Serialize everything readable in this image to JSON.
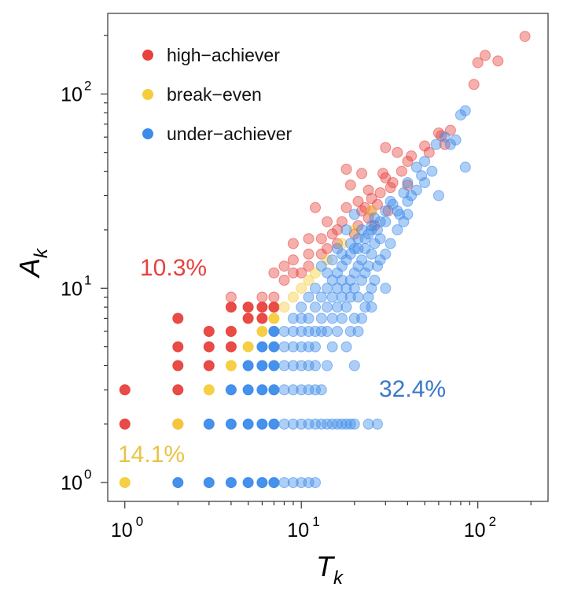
{
  "chart_data": {
    "type": "scatter",
    "title": "",
    "xlabel": "T",
    "xlabel_sub": "k",
    "ylabel": "A",
    "ylabel_sub": "k",
    "xscale": "log",
    "yscale": "log",
    "xlim": [
      0.8,
      250
    ],
    "ylim": [
      0.8,
      260
    ],
    "xticks": [
      {
        "value": 1,
        "base": "10",
        "exp": "0"
      },
      {
        "value": 10,
        "base": "10",
        "exp": "1"
      },
      {
        "value": 100,
        "base": "10",
        "exp": "2"
      }
    ],
    "yticks": [
      {
        "value": 1,
        "base": "10",
        "exp": "0"
      },
      {
        "value": 10,
        "base": "10",
        "exp": "1"
      },
      {
        "value": 100,
        "base": "10",
        "exp": "2"
      }
    ],
    "grid": false,
    "legend_position": "top-left",
    "series": [
      {
        "name": "high-achiever",
        "label": "high−achiever",
        "color": "#e8413c",
        "points": [
          [
            1,
            3
          ],
          [
            1,
            2
          ],
          [
            2,
            4
          ],
          [
            2,
            3
          ],
          [
            2,
            2
          ],
          [
            2,
            5
          ],
          [
            2,
            7
          ],
          [
            3,
            5
          ],
          [
            3,
            4
          ],
          [
            3,
            6
          ],
          [
            4,
            5
          ],
          [
            4,
            6
          ],
          [
            4,
            8
          ],
          [
            4,
            9
          ],
          [
            5,
            7
          ],
          [
            5,
            8
          ],
          [
            6,
            7
          ],
          [
            6,
            8
          ],
          [
            6,
            9
          ],
          [
            7,
            8
          ],
          [
            7,
            9
          ],
          [
            7,
            12
          ],
          [
            8,
            13
          ],
          [
            8,
            11
          ],
          [
            9,
            12
          ],
          [
            9,
            14
          ],
          [
            9,
            17
          ],
          [
            10,
            12
          ],
          [
            11,
            13
          ],
          [
            11,
            15
          ],
          [
            11,
            18
          ],
          [
            12,
            26
          ],
          [
            13,
            18
          ],
          [
            14,
            16
          ],
          [
            14,
            22
          ],
          [
            15,
            19
          ],
          [
            16,
            17
          ],
          [
            16,
            20
          ],
          [
            17,
            22
          ],
          [
            18,
            26
          ],
          [
            19,
            34
          ],
          [
            20,
            19
          ],
          [
            21,
            21
          ],
          [
            21,
            28
          ],
          [
            22,
            25
          ],
          [
            22,
            39
          ],
          [
            23,
            26
          ],
          [
            24,
            23
          ],
          [
            25,
            25
          ],
          [
            25,
            29
          ],
          [
            26,
            21
          ],
          [
            27,
            27
          ],
          [
            28,
            31
          ],
          [
            29,
            39
          ],
          [
            30,
            37
          ],
          [
            31,
            25
          ],
          [
            32,
            33
          ],
          [
            33,
            35
          ],
          [
            35,
            50
          ],
          [
            37,
            40
          ],
          [
            40,
            45
          ],
          [
            42,
            48
          ],
          [
            50,
            54
          ],
          [
            53,
            50
          ],
          [
            60,
            63
          ],
          [
            62,
            61
          ],
          [
            65,
            55
          ],
          [
            70,
            65
          ],
          [
            95,
            112
          ],
          [
            100,
            145
          ],
          [
            110,
            158
          ],
          [
            130,
            148
          ],
          [
            185,
            198
          ],
          [
            40,
            34
          ],
          [
            30,
            53
          ],
          [
            24,
            32
          ],
          [
            18,
            41
          ],
          [
            13,
            15
          ]
        ]
      },
      {
        "name": "break-even",
        "label": "break−even",
        "color": "#f5cc3a",
        "points": [
          [
            1,
            1
          ],
          [
            2,
            2
          ],
          [
            3,
            3
          ],
          [
            4,
            4
          ],
          [
            5,
            5
          ],
          [
            6,
            6
          ],
          [
            7,
            7
          ],
          [
            8,
            8
          ],
          [
            9,
            9
          ],
          [
            10,
            10
          ],
          [
            11,
            11
          ],
          [
            12,
            12
          ],
          [
            14,
            14
          ],
          [
            17,
            17
          ],
          [
            20,
            20
          ],
          [
            25,
            25
          ]
        ]
      },
      {
        "name": "under-achiever",
        "label": "under−achiever",
        "color": "#3b8bea",
        "points": [
          [
            2,
            1
          ],
          [
            3,
            1
          ],
          [
            3,
            2
          ],
          [
            4,
            1
          ],
          [
            4,
            2
          ],
          [
            4,
            3
          ],
          [
            5,
            1
          ],
          [
            5,
            2
          ],
          [
            5,
            3
          ],
          [
            5,
            4
          ],
          [
            6,
            1
          ],
          [
            6,
            2
          ],
          [
            6,
            3
          ],
          [
            6,
            4
          ],
          [
            6,
            5
          ],
          [
            7,
            1
          ],
          [
            7,
            2
          ],
          [
            7,
            3
          ],
          [
            7,
            4
          ],
          [
            7,
            5
          ],
          [
            7,
            6
          ],
          [
            8,
            1
          ],
          [
            8,
            2
          ],
          [
            8,
            3
          ],
          [
            8,
            4
          ],
          [
            8,
            5
          ],
          [
            8,
            6
          ],
          [
            9,
            1
          ],
          [
            9,
            2
          ],
          [
            9,
            3
          ],
          [
            9,
            4
          ],
          [
            9,
            5
          ],
          [
            9,
            6
          ],
          [
            9,
            7
          ],
          [
            10,
            1
          ],
          [
            10,
            2
          ],
          [
            10,
            3
          ],
          [
            10,
            4
          ],
          [
            10,
            5
          ],
          [
            10,
            6
          ],
          [
            10,
            7
          ],
          [
            10,
            8
          ],
          [
            11,
            1
          ],
          [
            11,
            2
          ],
          [
            11,
            3
          ],
          [
            11,
            4
          ],
          [
            11,
            5
          ],
          [
            11,
            6
          ],
          [
            11,
            7
          ],
          [
            11,
            9
          ],
          [
            12,
            1
          ],
          [
            12,
            2
          ],
          [
            12,
            3
          ],
          [
            12,
            4
          ],
          [
            12,
            5
          ],
          [
            12,
            6
          ],
          [
            12,
            8
          ],
          [
            12,
            10
          ],
          [
            13,
            2
          ],
          [
            13,
            3
          ],
          [
            13,
            6
          ],
          [
            13,
            7
          ],
          [
            13,
            9
          ],
          [
            14,
            2
          ],
          [
            14,
            4
          ],
          [
            14,
            6
          ],
          [
            14,
            8
          ],
          [
            14,
            10
          ],
          [
            15,
            2
          ],
          [
            15,
            5
          ],
          [
            15,
            7
          ],
          [
            15,
            9
          ],
          [
            15,
            11
          ],
          [
            16,
            2
          ],
          [
            16,
            6
          ],
          [
            16,
            8
          ],
          [
            16,
            10
          ],
          [
            16,
            12
          ],
          [
            17,
            2
          ],
          [
            17,
            7
          ],
          [
            17,
            9
          ],
          [
            17,
            11
          ],
          [
            17,
            13
          ],
          [
            18,
            2
          ],
          [
            18,
            5
          ],
          [
            18,
            8
          ],
          [
            18,
            10
          ],
          [
            18,
            14
          ],
          [
            19,
            2
          ],
          [
            19,
            6
          ],
          [
            19,
            9
          ],
          [
            19,
            11
          ],
          [
            19,
            15
          ],
          [
            20,
            2
          ],
          [
            20,
            4
          ],
          [
            20,
            7
          ],
          [
            20,
            10
          ],
          [
            20,
            12
          ],
          [
            20,
            16
          ],
          [
            21,
            6
          ],
          [
            21,
            9
          ],
          [
            21,
            13
          ],
          [
            21,
            18
          ],
          [
            22,
            7
          ],
          [
            22,
            11
          ],
          [
            22,
            14
          ],
          [
            23,
            8
          ],
          [
            23,
            12
          ],
          [
            23,
            16
          ],
          [
            24,
            2
          ],
          [
            24,
            9
          ],
          [
            24,
            13
          ],
          [
            24,
            19
          ],
          [
            25,
            10
          ],
          [
            25,
            15
          ],
          [
            25,
            21
          ],
          [
            26,
            11
          ],
          [
            26,
            17
          ],
          [
            27,
            2
          ],
          [
            27,
            13
          ],
          [
            27,
            20
          ],
          [
            28,
            14
          ],
          [
            28,
            22
          ],
          [
            30,
            15
          ],
          [
            30,
            25
          ],
          [
            32,
            17
          ],
          [
            32,
            28
          ],
          [
            35,
            20
          ],
          [
            35,
            25
          ],
          [
            38,
            22
          ],
          [
            38,
            31
          ],
          [
            40,
            24
          ],
          [
            40,
            35
          ],
          [
            42,
            30
          ],
          [
            45,
            42
          ],
          [
            48,
            38
          ],
          [
            50,
            45
          ],
          [
            55,
            40
          ],
          [
            58,
            55
          ],
          [
            60,
            30
          ],
          [
            65,
            60
          ],
          [
            70,
            55
          ],
          [
            75,
            58
          ],
          [
            80,
            78
          ],
          [
            85,
            82
          ],
          [
            85,
            42
          ],
          [
            20,
            24
          ],
          [
            18,
            20
          ],
          [
            16,
            16
          ],
          [
            22,
            20
          ],
          [
            26,
            23
          ],
          [
            14,
            12
          ],
          [
            13,
            13
          ],
          [
            15,
            14
          ],
          [
            17,
            15
          ],
          [
            19,
            17
          ],
          [
            21,
            16
          ],
          [
            23,
            18
          ],
          [
            25,
            20
          ],
          [
            28,
            18
          ],
          [
            30,
            22
          ],
          [
            33,
            27
          ],
          [
            36,
            24
          ],
          [
            40,
            28
          ],
          [
            45,
            32
          ],
          [
            50,
            35
          ],
          [
            30,
            10
          ],
          [
            25,
            8
          ]
        ]
      }
    ],
    "annotations": [
      {
        "name": "high-achiever-share",
        "text": "10.3%",
        "color": "#e8413c"
      },
      {
        "name": "break-even-share",
        "text": "14.1%",
        "color": "#e8c347"
      },
      {
        "name": "under-achiever-share",
        "text": "32.4%",
        "color": "#3a78c6"
      }
    ]
  }
}
